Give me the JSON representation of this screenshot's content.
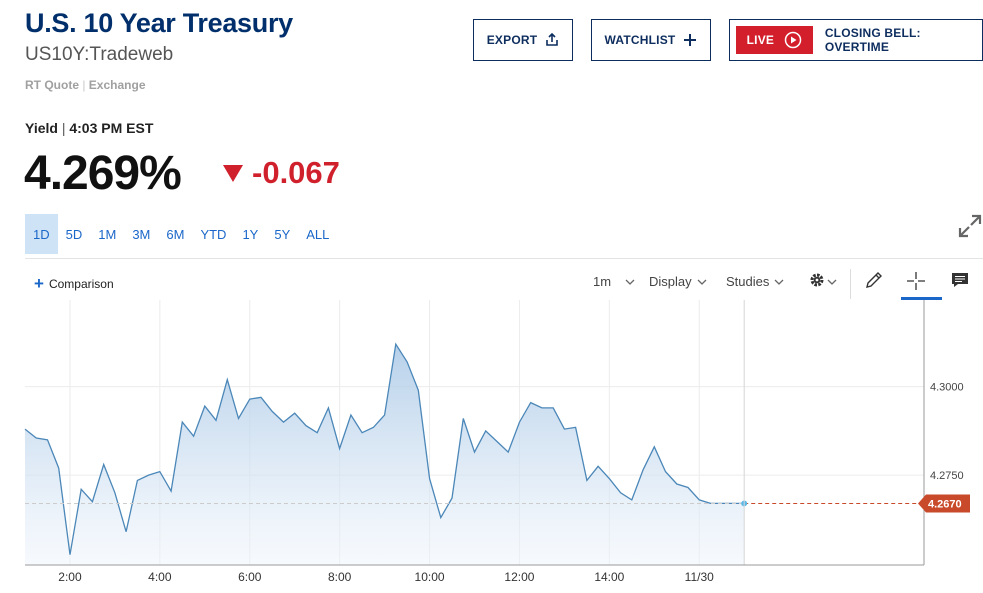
{
  "header": {
    "title": "U.S. 10 Year Treasury",
    "symbol": "US10Y:Tradeweb",
    "rt_quote": "RT Quote",
    "exchange": "Exchange"
  },
  "actions": {
    "export_label": "EXPORT",
    "watchlist_label": "WATCHLIST",
    "live_label": "LIVE",
    "closing_bell_label": "CLOSING BELL: OVERTIME"
  },
  "quote": {
    "yield_label": "Yield",
    "time": "4:03 PM EST",
    "price": "4.269%",
    "change": "-0.067",
    "change_color": "#d0202c"
  },
  "ranges": [
    "1D",
    "5D",
    "1M",
    "3M",
    "6M",
    "YTD",
    "1Y",
    "5Y",
    "ALL"
  ],
  "active_range": "1D",
  "toolbar": {
    "comparison_label": "Comparison",
    "interval_label": "1m",
    "display_label": "Display",
    "studies_label": "Studies",
    "icons": [
      "gear-icon",
      "pencil-icon",
      "crosshair-icon",
      "comment-icon",
      "expand-icon"
    ]
  },
  "chart_data": {
    "type": "area",
    "x_ticks": [
      "2:00",
      "4:00",
      "6:00",
      "8:00",
      "10:00",
      "12:00",
      "14:00",
      "11/30"
    ],
    "y_ticks": [
      "4.3000",
      "4.2750"
    ],
    "ylim": [
      4.2496,
      4.3245
    ],
    "last_value_label": "4.2670",
    "last_value": 4.267,
    "line_color": "#4b87b8",
    "last_value_color": "#c94a2a",
    "x": [
      0,
      0.25,
      0.5,
      0.75,
      1,
      1.25,
      1.5,
      1.75,
      2,
      2.25,
      2.5,
      2.75,
      3,
      3.25,
      3.5,
      3.75,
      4,
      4.25,
      4.5,
      4.75,
      5,
      5.25,
      5.5,
      5.75,
      6,
      6.25,
      6.5,
      6.75,
      7,
      7.25,
      7.5,
      7.75,
      8,
      8.25,
      8.5,
      8.75,
      9,
      9.25,
      9.5,
      9.75,
      10,
      10.25,
      10.5,
      10.75,
      11,
      11.25,
      11.5,
      11.75,
      12,
      12.25,
      12.5,
      12.75,
      13,
      13.25,
      13.5,
      13.75,
      14,
      14.25,
      14.5,
      14.75,
      15,
      15.25,
      15.5,
      15.75,
      16
    ],
    "y": [
      4.288,
      4.2855,
      4.285,
      4.277,
      4.2525,
      4.271,
      4.2675,
      4.278,
      4.27,
      4.259,
      4.2735,
      4.275,
      4.276,
      4.2705,
      4.29,
      4.286,
      4.2945,
      4.2905,
      4.302,
      4.291,
      4.2965,
      4.297,
      4.293,
      4.29,
      4.2925,
      4.289,
      4.287,
      4.294,
      4.2825,
      4.292,
      4.287,
      4.2885,
      4.292,
      4.312,
      4.307,
      4.299,
      4.274,
      4.263,
      4.2685,
      4.291,
      4.2815,
      4.2875,
      4.2845,
      4.2815,
      4.29,
      4.2955,
      4.294,
      4.294,
      4.288,
      4.2885,
      4.2735,
      4.2775,
      4.274,
      4.27,
      4.268,
      4.2765,
      4.283,
      4.276,
      4.2725,
      4.2715,
      4.268,
      4.267,
      4.267,
      4.267,
      4.267
    ]
  }
}
